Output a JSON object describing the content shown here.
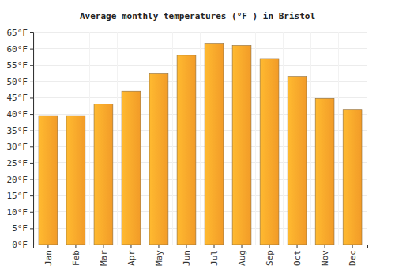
{
  "chart_data": {
    "type": "bar",
    "title": "Average monthly temperatures (°F ) in Bristol",
    "categories": [
      "Jan",
      "Feb",
      "Mar",
      "Apr",
      "May",
      "Jun",
      "Jul",
      "Aug",
      "Sep",
      "Oct",
      "Nov",
      "Dec"
    ],
    "values": [
      39.5,
      39.5,
      43,
      47,
      52.5,
      58,
      61.7,
      61,
      57,
      51.5,
      44.8,
      41.3
    ],
    "color": "#ffa42a",
    "ylim": [
      0,
      65
    ],
    "yticks": [
      {
        "value": 0,
        "label": "0°F"
      },
      {
        "value": 5,
        "label": "5°F"
      },
      {
        "value": 10,
        "label": "10°F"
      },
      {
        "value": 15,
        "label": "15°F"
      },
      {
        "value": 20,
        "label": "20°F"
      },
      {
        "value": 25,
        "label": "25°F"
      },
      {
        "value": 30,
        "label": "30°F"
      },
      {
        "value": 35,
        "label": "35°F"
      },
      {
        "value": 40,
        "label": "40°F"
      },
      {
        "value": 45,
        "label": "45°F"
      },
      {
        "value": 50,
        "label": "50°F"
      },
      {
        "value": 55,
        "label": "55°F"
      },
      {
        "value": 60,
        "label": "60°F"
      },
      {
        "value": 65,
        "label": "65°F"
      }
    ],
    "grid": true
  }
}
